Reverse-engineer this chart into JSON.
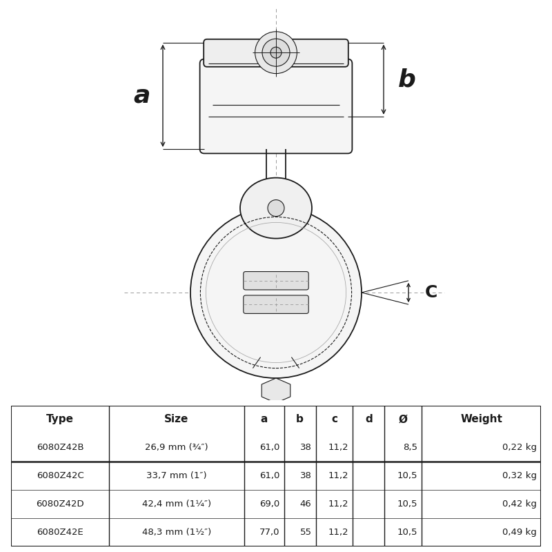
{
  "bg_color": "#ffffff",
  "line_color": "#1a1a1a",
  "table_cols": [
    "Type",
    "Size",
    "a",
    "b",
    "c",
    "d",
    "Ø",
    "Weight"
  ],
  "table_rows": [
    [
      "6080Z42B",
      "26,9 mm (¾″)",
      "61,0",
      "38",
      "11,2",
      "",
      "8,5",
      "0,22 kg"
    ],
    [
      "6080Z42C",
      "33,7 mm (1″)",
      "61,0",
      "38",
      "11,2",
      "",
      "10,5",
      "0,32 kg"
    ],
    [
      "6080Z42D",
      "42,4 mm (1¼″)",
      "69,0",
      "46",
      "11,2",
      "",
      "10,5",
      "0,42 kg"
    ],
    [
      "6080Z42E",
      "48,3 mm (1½″)",
      "77,0",
      "55",
      "11,2",
      "",
      "10,5",
      "0,49 kg"
    ]
  ],
  "label_a": "a",
  "label_b": "b",
  "label_c": "C"
}
